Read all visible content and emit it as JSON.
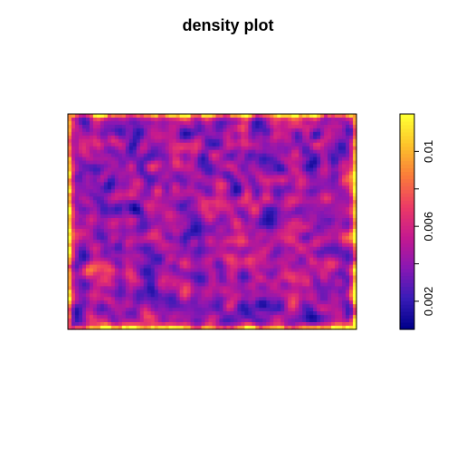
{
  "chart_data": {
    "type": "heatmap",
    "title": "density plot",
    "xlabel": "",
    "ylabel": "",
    "value_range": [
      0.0005,
      0.012
    ],
    "colorbar": {
      "ticks": [
        0.002,
        0.006,
        0.01
      ],
      "tick_labels": [
        "0.002",
        "0.006",
        "0.01"
      ],
      "colors": [
        "#00008B",
        "#3A1CB8",
        "#8A17B3",
        "#C5198F",
        "#EC3A66",
        "#FA7A3B",
        "#FDC02B",
        "#FFFF33"
      ]
    },
    "grid": {
      "cols": 80,
      "rows": 60,
      "seed": 20240517,
      "description": "random point-process kernel density; mostly low values (blue/purple) with scattered magenta/orange hot spots and bright edges"
    }
  }
}
